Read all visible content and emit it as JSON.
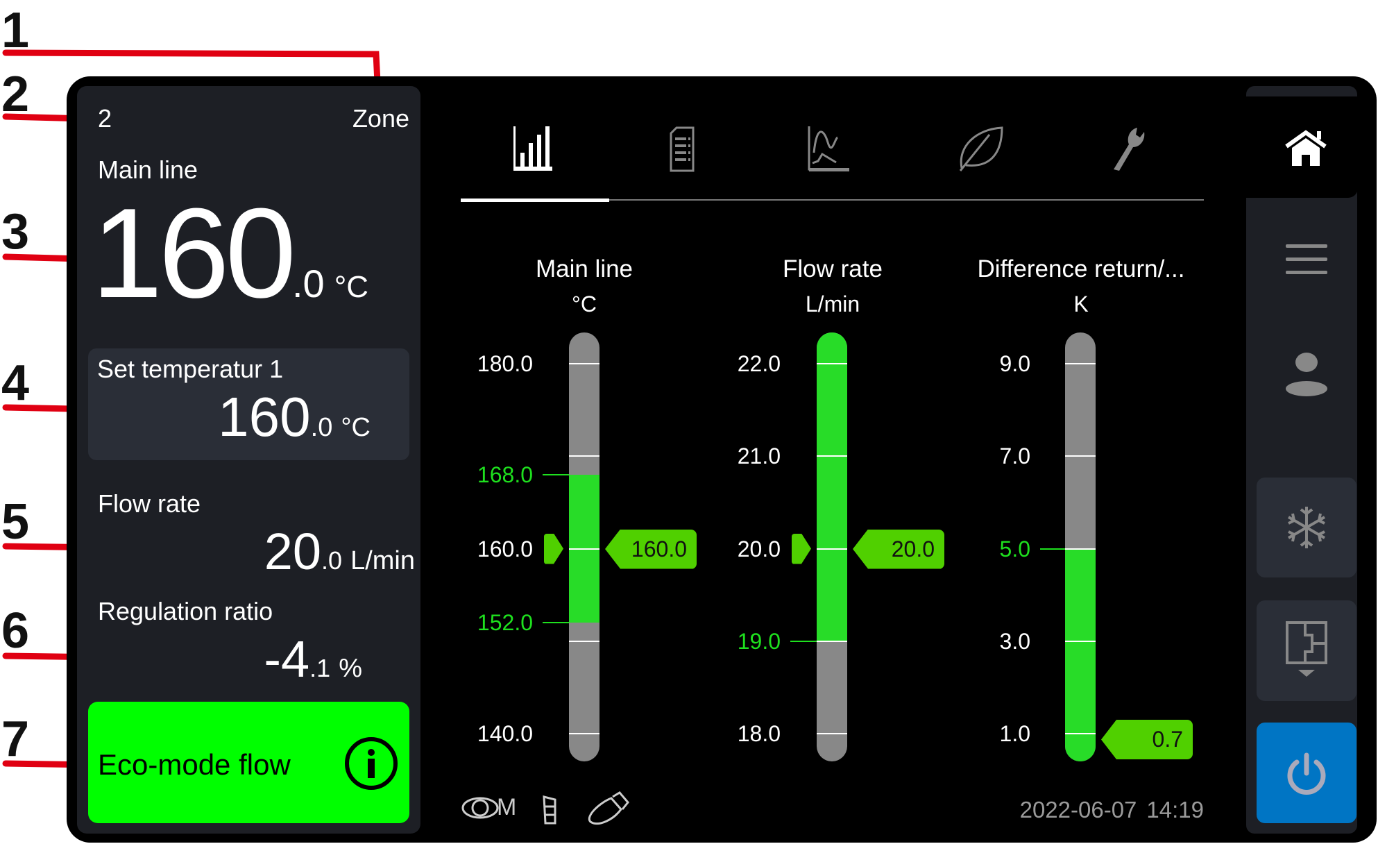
{
  "callouts": [
    "1",
    "2",
    "3",
    "4",
    "5",
    "6",
    "7"
  ],
  "colors": {
    "accent_green": "#00ff00",
    "gauge_green": "#28dc28",
    "marker_green": "#50d000",
    "limit_green": "#1ee01e",
    "power_blue": "#0075c4",
    "panel_bg": "#1d1f25"
  },
  "zone_panel": {
    "zone_number": "2",
    "zone_label": "Zone",
    "main_line_label": "Main line",
    "main_line_value_int": "160",
    "main_line_value_dec": ".0",
    "main_line_unit": "°C",
    "set_temp_label": "Set temperatur 1",
    "set_temp_int": "160",
    "set_temp_dec": ".0",
    "set_temp_unit": "°C",
    "flow_label": "Flow rate",
    "flow_int": "20",
    "flow_dec": ".0",
    "flow_unit": "L/min",
    "regulation_label": "Regulation ratio",
    "regulation_int": "-4",
    "regulation_dec": ".1",
    "regulation_unit": "%",
    "eco_label": "Eco-mode flow",
    "eco_icon": "info-icon"
  },
  "tabs": [
    {
      "icon": "bar-chart-icon",
      "active": true
    },
    {
      "icon": "document-list-icon",
      "active": false
    },
    {
      "icon": "line-chart-icon",
      "active": false
    },
    {
      "icon": "leaf-icon",
      "active": false
    },
    {
      "icon": "wrench-icon",
      "active": false
    }
  ],
  "gauges": [
    {
      "title": "Main line",
      "unit": "°C",
      "scale_top": 180,
      "scale_bottom": 140,
      "ticks": [
        180,
        170,
        160,
        150,
        140
      ],
      "tick_labels": [
        {
          "value": 180,
          "label": "180.0"
        },
        {
          "value": 160,
          "label": "160.0"
        },
        {
          "value": 140,
          "label": "140.0"
        }
      ],
      "limits": [
        {
          "value": 168,
          "label": "168.0"
        },
        {
          "value": 152,
          "label": "152.0"
        }
      ],
      "green_range": [
        152,
        168
      ],
      "value": 160,
      "value_label": "160.0",
      "setpoint": 160
    },
    {
      "title": "Flow rate",
      "unit": "L/min",
      "scale_top": 22,
      "scale_bottom": 18,
      "ticks": [
        22,
        21,
        20,
        19,
        18
      ],
      "tick_labels": [
        {
          "value": 22,
          "label": "22.0"
        },
        {
          "value": 21,
          "label": "21.0"
        },
        {
          "value": 20,
          "label": "20.0"
        },
        {
          "value": 18,
          "label": "18.0"
        }
      ],
      "limits": [
        {
          "value": 19,
          "label": "19.0"
        }
      ],
      "green_range": [
        19,
        null
      ],
      "value": 20,
      "value_label": "20.0",
      "setpoint": 20
    },
    {
      "title": "Difference return/...",
      "unit": "K",
      "scale_top": 9,
      "scale_bottom": 1,
      "ticks": [
        9,
        7,
        5,
        3,
        1
      ],
      "tick_labels": [
        {
          "value": 9,
          "label": "9.0"
        },
        {
          "value": 7,
          "label": "7.0"
        },
        {
          "value": 3,
          "label": "3.0"
        },
        {
          "value": 1,
          "label": "1.0"
        }
      ],
      "limits": [
        {
          "value": 5,
          "label": "5.0"
        }
      ],
      "green_range": [
        null,
        5
      ],
      "value": 0.7,
      "value_label": "0.7",
      "setpoint": null
    }
  ],
  "footer": {
    "status_icons": [
      "eye-m-icon",
      "filter-icon",
      "usb-stick-icon"
    ],
    "status_text_m": "M",
    "date": "2022-06-07",
    "time": "14:19"
  },
  "sidebar": {
    "items": [
      {
        "icon": "home-icon",
        "active": true
      },
      {
        "icon": "menu-icon",
        "active": false
      },
      {
        "icon": "user-icon",
        "active": false
      },
      {
        "icon": "snowflake-icon",
        "active": false
      },
      {
        "icon": "floorplan-download-icon",
        "active": false
      },
      {
        "icon": "power-icon",
        "active": false
      }
    ]
  }
}
